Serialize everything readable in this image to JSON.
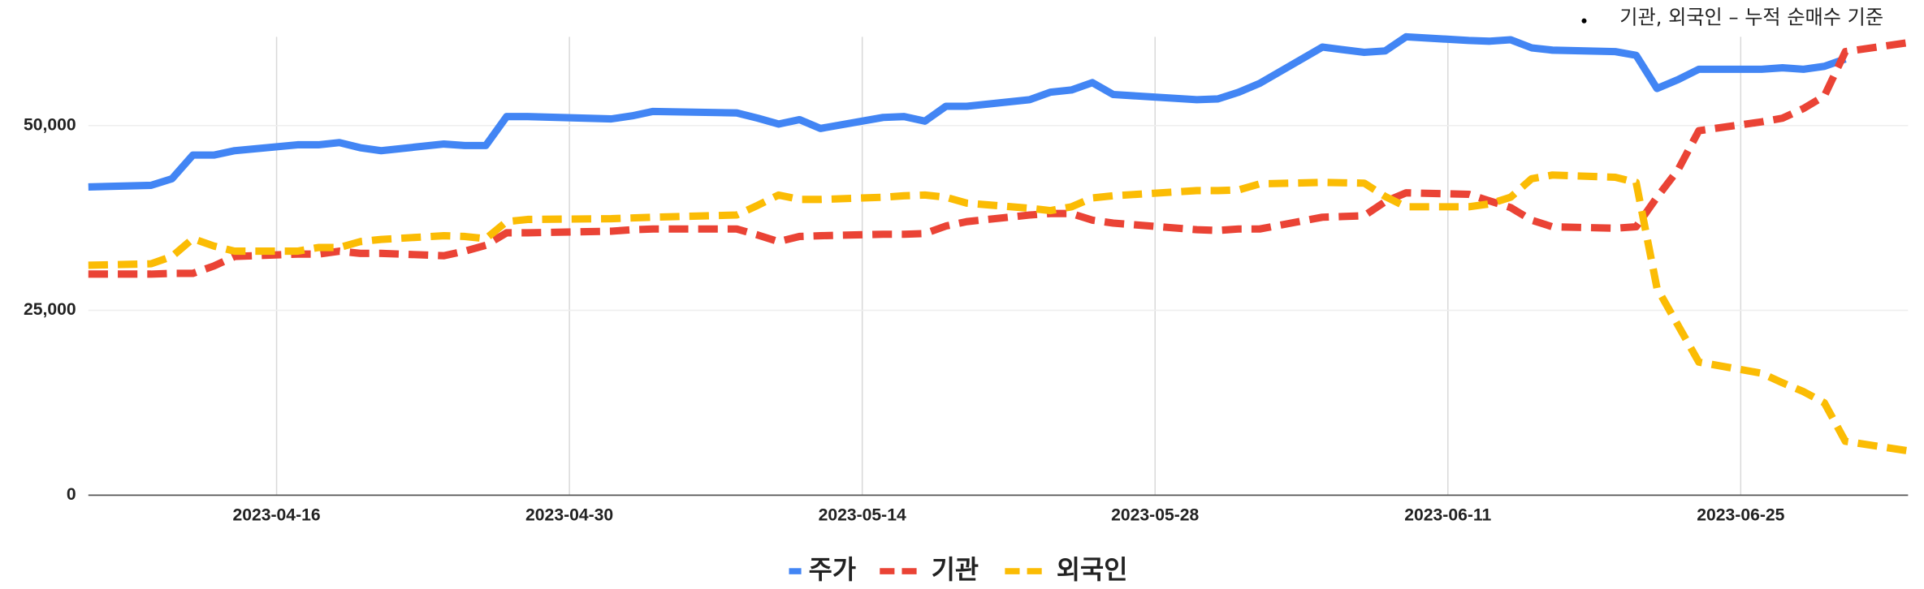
{
  "chart_data": {
    "type": "line",
    "annotation": "기관, 외국인 – 누적 순매수 기준",
    "x": [
      "2023-04-07",
      "2023-04-10",
      "2023-04-11",
      "2023-04-12",
      "2023-04-13",
      "2023-04-14",
      "2023-04-17",
      "2023-04-18",
      "2023-04-19",
      "2023-04-20",
      "2023-04-21",
      "2023-04-24",
      "2023-04-25",
      "2023-04-26",
      "2023-04-27",
      "2023-04-28",
      "2023-05-02",
      "2023-05-03",
      "2023-05-04",
      "2023-05-08",
      "2023-05-09",
      "2023-05-10",
      "2023-05-11",
      "2023-05-12",
      "2023-05-15",
      "2023-05-16",
      "2023-05-17",
      "2023-05-18",
      "2023-05-19",
      "2023-05-22",
      "2023-05-23",
      "2023-05-24",
      "2023-05-25",
      "2023-05-26",
      "2023-05-30",
      "2023-05-31",
      "2023-06-01",
      "2023-06-02",
      "2023-06-05",
      "2023-06-07",
      "2023-06-08",
      "2023-06-09",
      "2023-06-12",
      "2023-06-13",
      "2023-06-14",
      "2023-06-15",
      "2023-06-16",
      "2023-06-19",
      "2023-06-20",
      "2023-06-21",
      "2023-06-22",
      "2023-06-23",
      "2023-06-26",
      "2023-06-27",
      "2023-06-28",
      "2023-06-29",
      "2023-06-30",
      "2023-07-03"
    ],
    "series": [
      {
        "name": "주가",
        "color": "#4285f4",
        "dashed": false,
        "values": [
          41700,
          41900,
          42800,
          46000,
          46000,
          46600,
          47400,
          47400,
          47700,
          47000,
          46600,
          47500,
          47300,
          47300,
          51200,
          51200,
          50900,
          51300,
          51900,
          51700,
          51000,
          50200,
          50800,
          49600,
          51100,
          51200,
          50600,
          52600,
          52600,
          53500,
          54500,
          54800,
          55800,
          54200,
          53500,
          53600,
          54500,
          55700,
          60600,
          59900,
          60100,
          62000,
          61500,
          61400,
          61600,
          60500,
          60200,
          60000,
          59500,
          55000,
          56200,
          57600,
          57600,
          57800,
          57600,
          58000,
          59000,
          null
        ]
      },
      {
        "name": "기관",
        "color": "#ea4335",
        "dashed": true,
        "values": [
          29900,
          29900,
          30000,
          30000,
          31000,
          32300,
          32600,
          32600,
          33000,
          32700,
          32700,
          32400,
          33000,
          33800,
          35500,
          35500,
          35700,
          35900,
          36000,
          36000,
          35200,
          34300,
          35000,
          35100,
          35300,
          35300,
          35400,
          36400,
          37000,
          37900,
          38100,
          38100,
          37200,
          36800,
          35900,
          35800,
          36000,
          36000,
          37600,
          37800,
          39700,
          40900,
          40700,
          39800,
          38900,
          37200,
          36300,
          36100,
          36300,
          40300,
          44000,
          49300,
          50500,
          51000,
          52300,
          54000,
          60000,
          61200
        ]
      },
      {
        "name": "외국인",
        "color": "#fbbc04",
        "dashed": true,
        "values": [
          31100,
          31300,
          32300,
          34700,
          33700,
          33000,
          33000,
          33500,
          33500,
          34300,
          34600,
          35100,
          35000,
          34700,
          37000,
          37300,
          37400,
          37500,
          37600,
          37900,
          39200,
          40600,
          40000,
          40000,
          40300,
          40500,
          40600,
          40300,
          39500,
          38800,
          38500,
          39000,
          40200,
          40500,
          41200,
          41200,
          41300,
          42100,
          42300,
          42200,
          40400,
          39000,
          39000,
          39400,
          40300,
          42800,
          43300,
          43000,
          42300,
          28000,
          23000,
          18000,
          16500,
          15200,
          14000,
          12500,
          7300,
          6000
        ]
      }
    ],
    "xlim": [
      "2023-04-07",
      "2023-07-03"
    ],
    "xticks": [
      "2023-04-16",
      "2023-04-30",
      "2023-05-14",
      "2023-05-28",
      "2023-06-11",
      "2023-06-25"
    ],
    "ylim": [
      0,
      62000
    ],
    "yticks": [
      {
        "value": 0,
        "label": "0"
      },
      {
        "value": 25000,
        "label": "25,000"
      },
      {
        "value": 50000,
        "label": "50,000"
      }
    ],
    "grid": true
  }
}
